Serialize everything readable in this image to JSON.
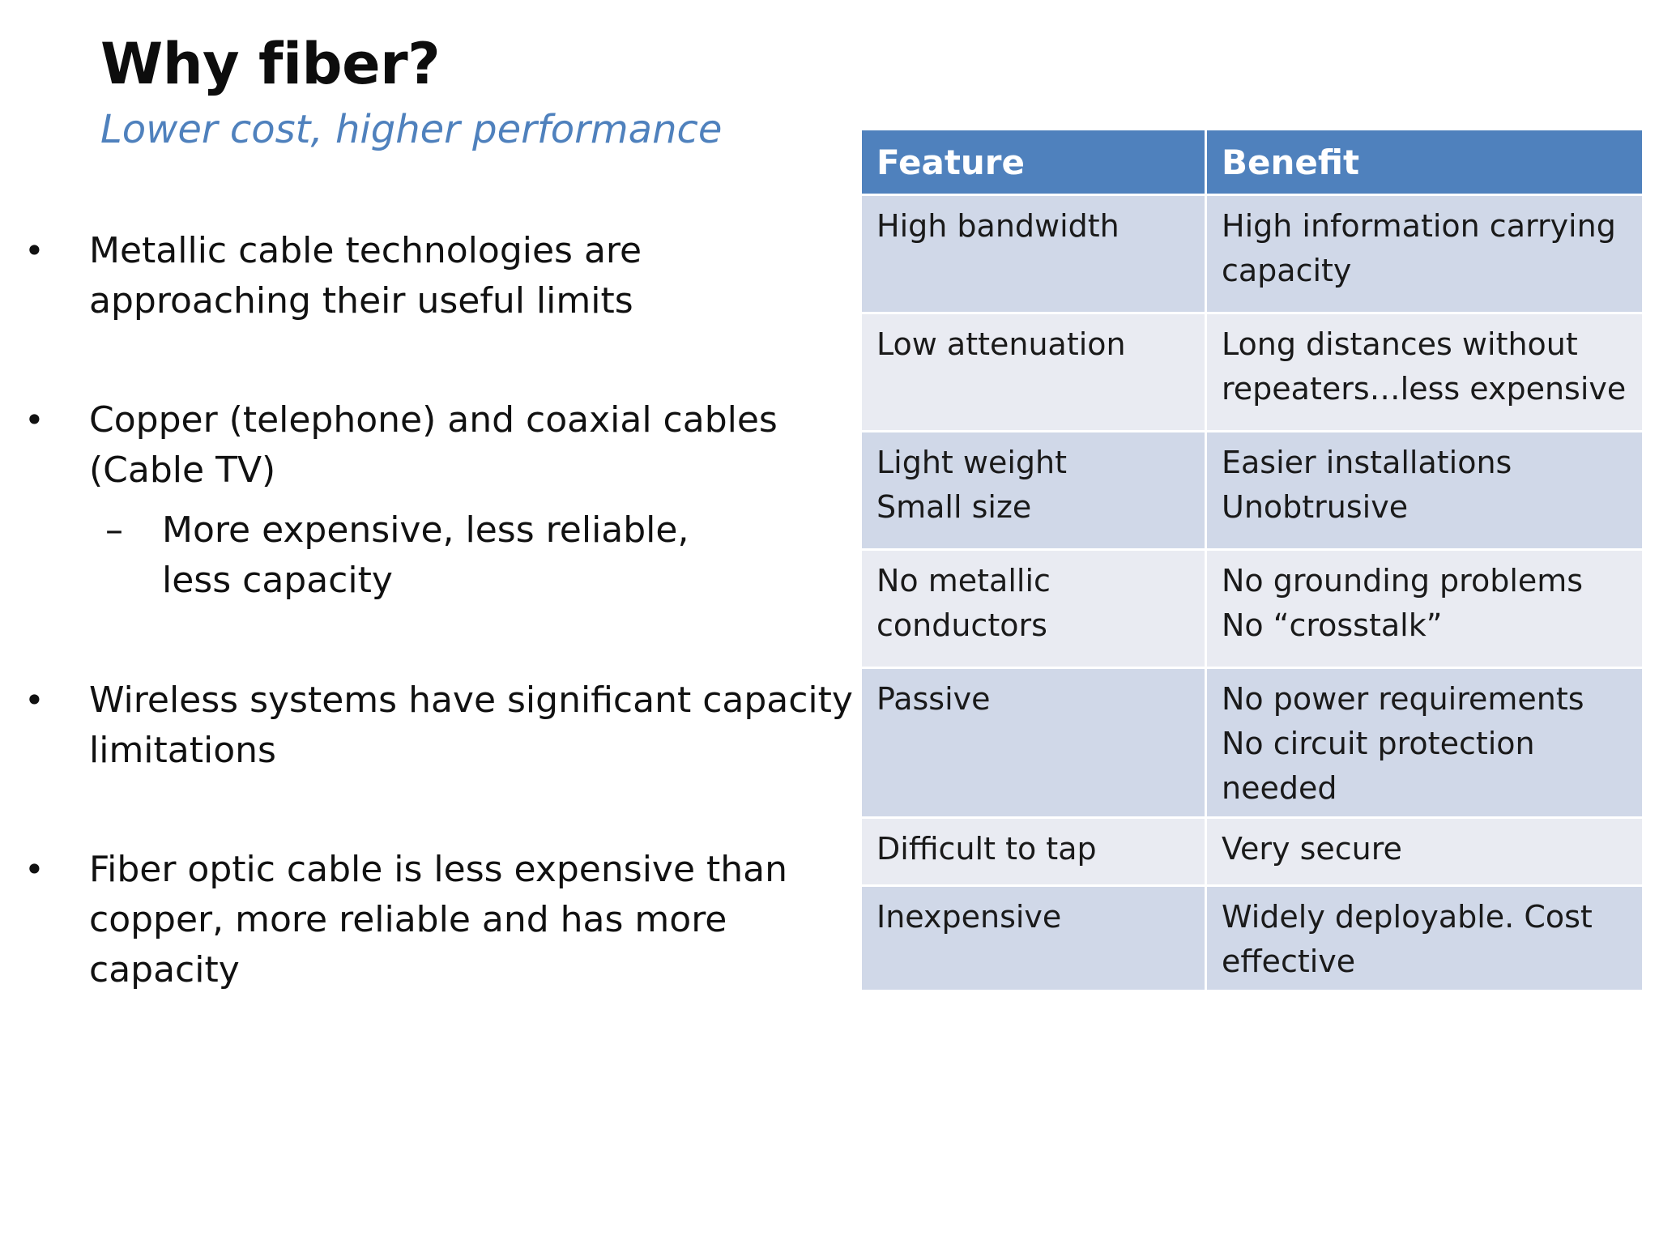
{
  "slide": {
    "title": "Why fiber?",
    "subtitle": "Lower cost, higher performance",
    "bullets": [
      {
        "text": "Metallic cable technologies are approaching their useful limits"
      },
      {
        "text": "Copper (telephone) and coaxial cables (Cable TV)",
        "sub": "More expensive, less reliable, less capacity"
      },
      {
        "text": "Wireless systems have significant capacity limitations"
      },
      {
        "text": "Fiber optic cable is less expensive than copper, more reliable and has more capacity"
      }
    ],
    "bullet_glyph": "•",
    "sub_glyph": "–"
  },
  "table": {
    "headers": [
      "Feature",
      "Benefit"
    ],
    "rows": [
      [
        "High bandwidth",
        "High information carrying capacity"
      ],
      [
        "Low attenuation",
        "Long distances without repeaters…less expensive"
      ],
      [
        "Light weight\nSmall size",
        "Easier installations\nUnobtrusive"
      ],
      [
        "No metallic conductors",
        "No grounding problems\nNo “crosstalk”"
      ],
      [
        "Passive",
        "No power requirements\nNo circuit protection needed"
      ],
      [
        "Difficult to tap",
        "Very secure"
      ],
      [
        "Inexpensive",
        "Widely deployable.  Cost effective"
      ]
    ]
  },
  "colors": {
    "accent": "#4f81bd",
    "row_dark": "#d0d8e8",
    "row_light": "#e9ebf2"
  }
}
